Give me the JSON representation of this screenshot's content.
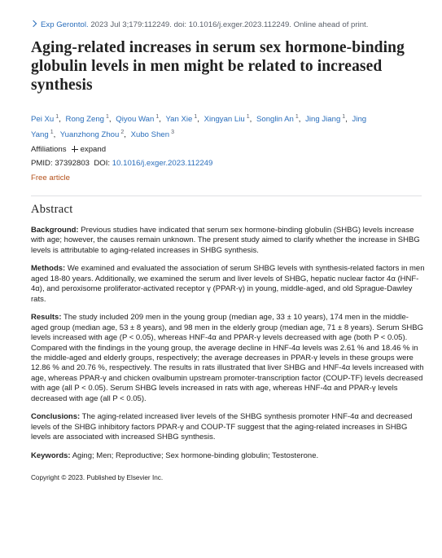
{
  "citation": {
    "journal": "Exp Gerontol.",
    "details": "2023 Jul 3;179:112249. doi: 10.1016/j.exger.2023.112249. Online ahead of print."
  },
  "title": "Aging-related increases in serum sex hormone-binding globulin levels in men might be related to increased synthesis",
  "authors": [
    {
      "name": "Pei Xu",
      "affiliation": 1
    },
    {
      "name": "Rong Zeng",
      "affiliation": 1
    },
    {
      "name": "Qiyou Wan",
      "affiliation": 1
    },
    {
      "name": "Yan Xie",
      "affiliation": 1
    },
    {
      "name": "Xingyan Liu",
      "affiliation": 1
    },
    {
      "name": "Songlin An",
      "affiliation": 1
    },
    {
      "name": "Jing Jiang",
      "affiliation": 1
    },
    {
      "name": "Jing Yang",
      "affiliation": 1
    },
    {
      "name": "Yuanzhong Zhou",
      "affiliation": 2
    },
    {
      "name": "Xubo Shen",
      "affiliation": 3
    }
  ],
  "affiliations": {
    "label": "Affiliations",
    "toggle": "expand"
  },
  "pmid": {
    "label": "PMID:",
    "value": "37392803"
  },
  "doi": {
    "label": "DOI:",
    "value": "10.1016/j.exger.2023.112249"
  },
  "free_article": "Free article",
  "abstract": {
    "heading": "Abstract",
    "sections": [
      {
        "label": "Background:",
        "text": "Previous studies have indicated that serum sex hormone-binding globulin (SHBG) levels increase with age; however, the causes remain unknown. The present study aimed to clarify whether the increase in SHBG levels is attributable to aging-related increases in SHBG synthesis."
      },
      {
        "label": "Methods:",
        "text": "We examined and evaluated the association of serum SHBG levels with synthesis-related factors in men aged 18-80 years. Additionally, we examined the serum and liver levels of SHBG, hepatic nuclear factor 4α (HNF-4α), and peroxisome proliferator-activated receptor γ (PPAR-γ) in young, middle-aged, and old Sprague-Dawley rats."
      },
      {
        "label": "Results:",
        "text": "The study included 209 men in the young group (median age, 33 ± 10 years), 174 men in the middle-aged group (median age, 53 ± 8 years), and 98 men in the elderly group (median age, 71 ± 8 years). Serum SHBG levels increased with age (P < 0.05), whereas HNF-4α and PPAR-γ levels decreased with age (both P < 0.05). Compared with the findings in the young group, the average decline in HNF-4α levels was 2.61 % and 18.46 % in the middle-aged and elderly groups, respectively; the average decreases in PPAR-γ levels in these groups were 12.86 % and 20.76 %, respectively. The results in rats illustrated that liver SHBG and HNF-4α levels increased with age, whereas PPAR-γ and chicken ovalbumin upstream promoter-transcription factor (COUP-TF) levels decreased with age (all P < 0.05). Serum SHBG levels increased in rats with age, whereas HNF-4α and PPAR-γ levels decreased with age (all P < 0.05)."
      },
      {
        "label": "Conclusions:",
        "text": "The aging-related increased liver levels of the SHBG synthesis promoter HNF-4α and decreased levels of the SHBG inhibitory factors PPAR-γ and COUP-TF suggest that the aging-related increases in SHBG levels are associated with increased SHBG synthesis."
      }
    ]
  },
  "keywords": {
    "label": "Keywords:",
    "text": "Aging; Men; Reproductive; Sex hormone-binding globulin; Testosterone."
  },
  "copyright": "Copyright © 2023. Published by Elsevier Inc."
}
